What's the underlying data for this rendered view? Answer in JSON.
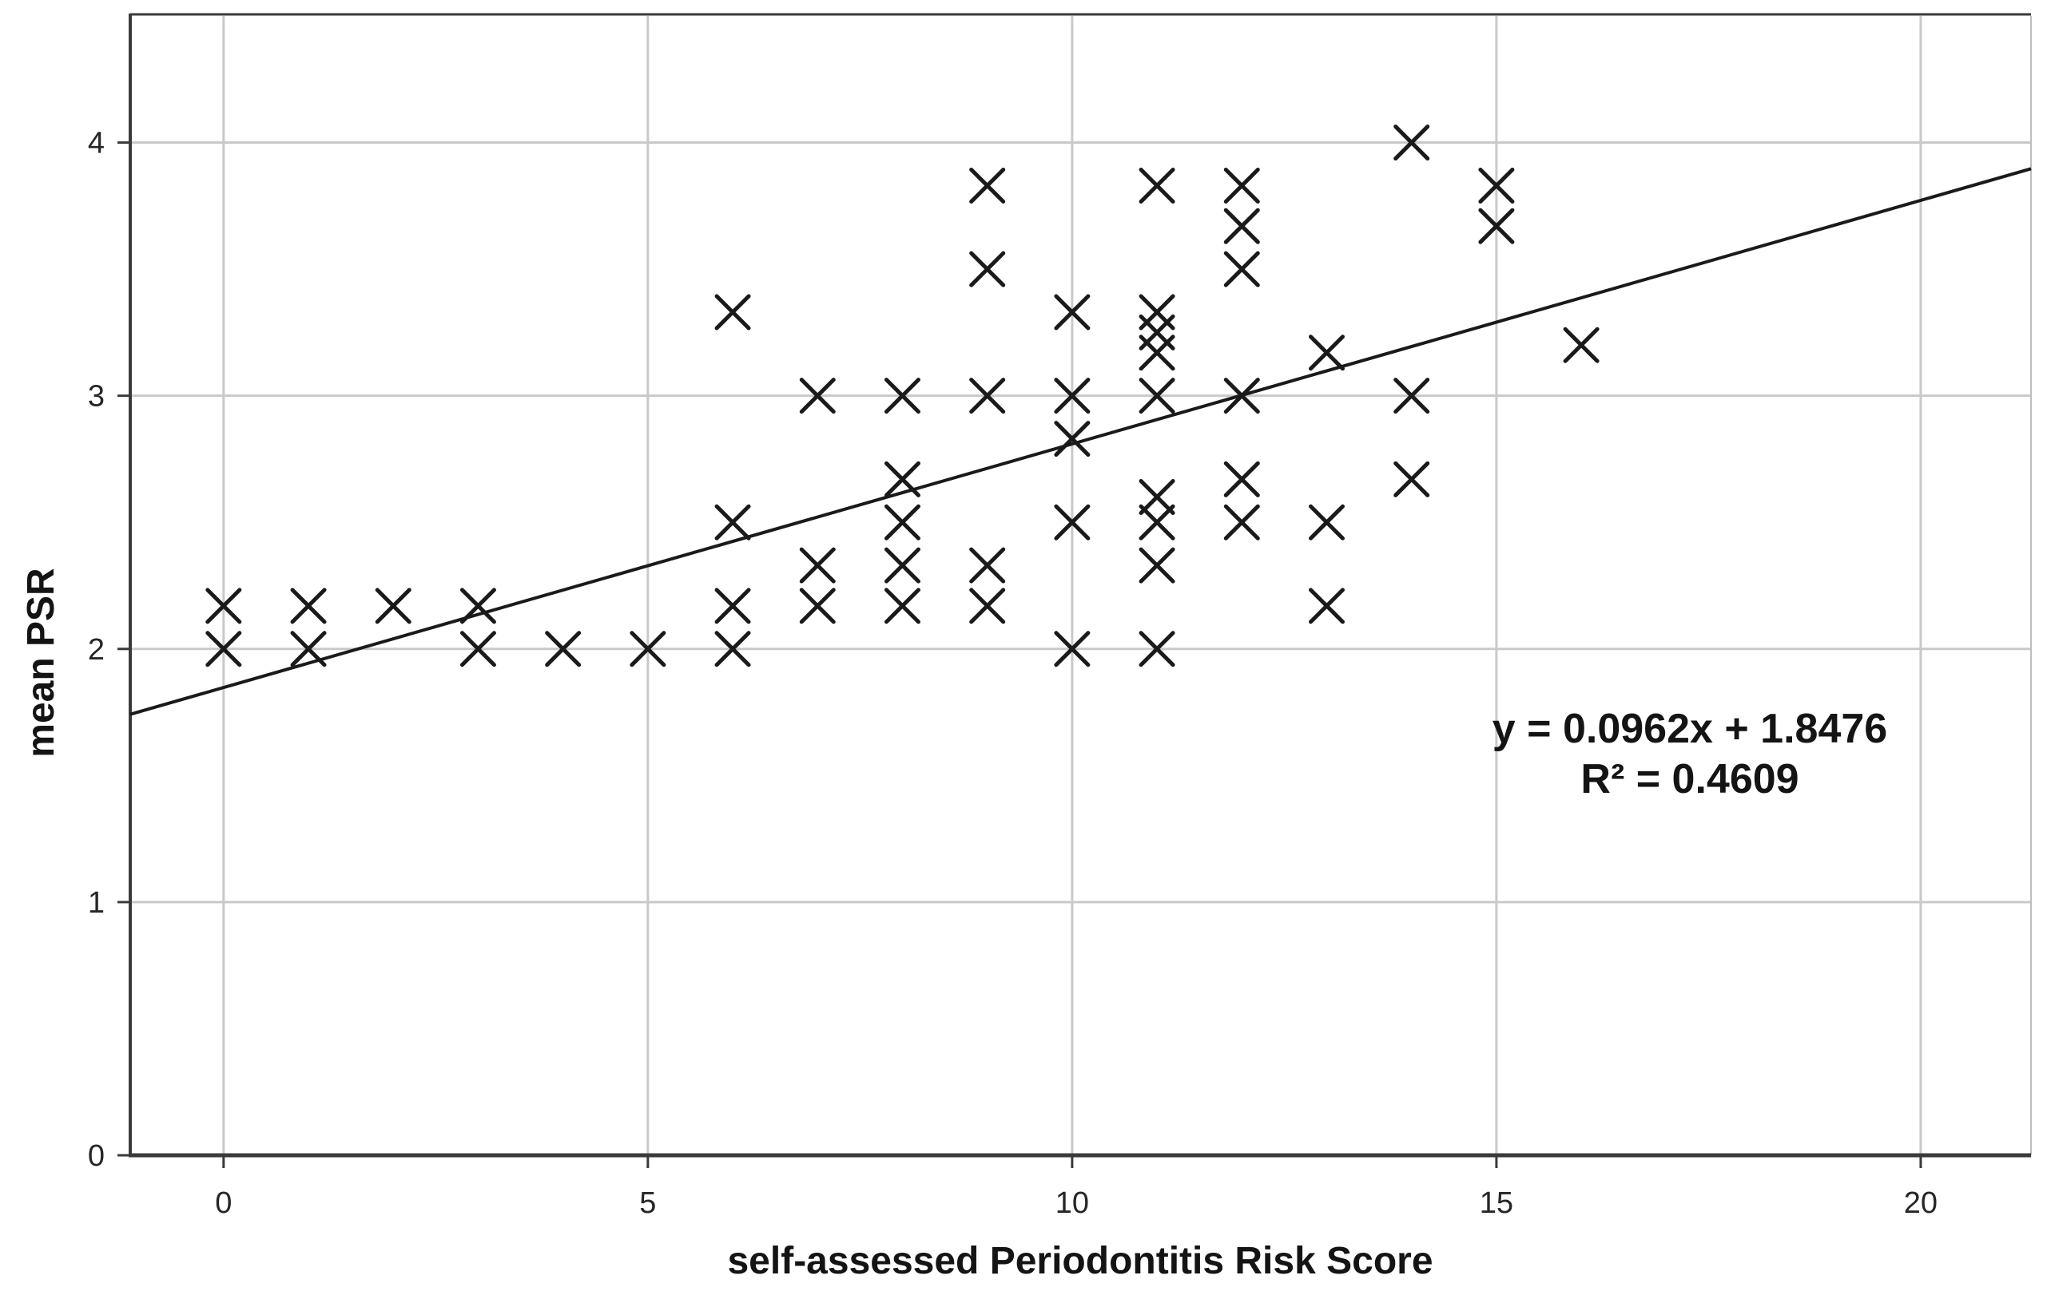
{
  "figure": {
    "background": "#ffffff"
  },
  "chart_data": {
    "type": "scatter",
    "marker": "x",
    "title": "",
    "xlabel": "self-assessed Periodontitis Risk Score",
    "ylabel": "mean PSR",
    "x_ticks": [
      0,
      5,
      10,
      15,
      20
    ],
    "y_ticks": [
      0,
      1,
      2,
      3,
      4
    ],
    "xlim": [
      -1.1,
      21.3
    ],
    "ylim": [
      0,
      4.5
    ],
    "grid": true,
    "legend_position": "none",
    "points": [
      [
        0,
        2.17
      ],
      [
        0,
        2.0
      ],
      [
        1,
        2.17
      ],
      [
        1,
        2.0
      ],
      [
        2,
        2.17
      ],
      [
        3,
        2.17
      ],
      [
        3,
        2.0
      ],
      [
        4,
        2.0
      ],
      [
        5,
        2.0
      ],
      [
        6,
        3.33
      ],
      [
        6,
        2.5
      ],
      [
        6,
        2.17
      ],
      [
        6,
        2.0
      ],
      [
        7,
        3.0
      ],
      [
        7,
        2.33
      ],
      [
        7,
        2.17
      ],
      [
        8,
        3.0
      ],
      [
        8,
        2.67
      ],
      [
        8,
        2.5
      ],
      [
        8,
        2.33
      ],
      [
        8,
        2.17
      ],
      [
        9,
        3.83
      ],
      [
        9,
        3.5
      ],
      [
        9,
        3.0
      ],
      [
        9,
        2.33
      ],
      [
        9,
        2.17
      ],
      [
        10,
        3.33
      ],
      [
        10,
        3.0
      ],
      [
        10,
        2.83
      ],
      [
        10,
        2.5
      ],
      [
        10,
        2.0
      ],
      [
        11,
        3.83
      ],
      [
        11,
        3.33
      ],
      [
        11,
        3.25
      ],
      [
        11,
        3.17
      ],
      [
        11,
        3.0
      ],
      [
        11,
        2.6
      ],
      [
        11,
        2.5
      ],
      [
        11,
        2.33
      ],
      [
        11,
        2.0
      ],
      [
        12,
        3.83
      ],
      [
        12,
        3.67
      ],
      [
        12,
        3.5
      ],
      [
        12,
        3.0
      ],
      [
        12,
        2.67
      ],
      [
        12,
        2.5
      ],
      [
        13,
        3.17
      ],
      [
        13,
        2.5
      ],
      [
        13,
        2.17
      ],
      [
        14,
        4.0
      ],
      [
        14,
        3.0
      ],
      [
        14,
        2.67
      ],
      [
        15,
        3.83
      ],
      [
        15,
        3.67
      ],
      [
        16,
        3.2
      ]
    ],
    "trendline": {
      "slope": 0.0962,
      "intercept": 1.8476,
      "x_start": -1.1,
      "x_end": 21.3
    },
    "annotation": {
      "line1": "y = 0.0962x + 1.8476",
      "line2": "R² = 0.4609"
    },
    "colors": {
      "marker": "#1a1a1a",
      "trend_line": "#1a1a1a",
      "grid": "#c9c9c9",
      "axis": "#3a3a3a",
      "tick_text": "#262626"
    }
  }
}
